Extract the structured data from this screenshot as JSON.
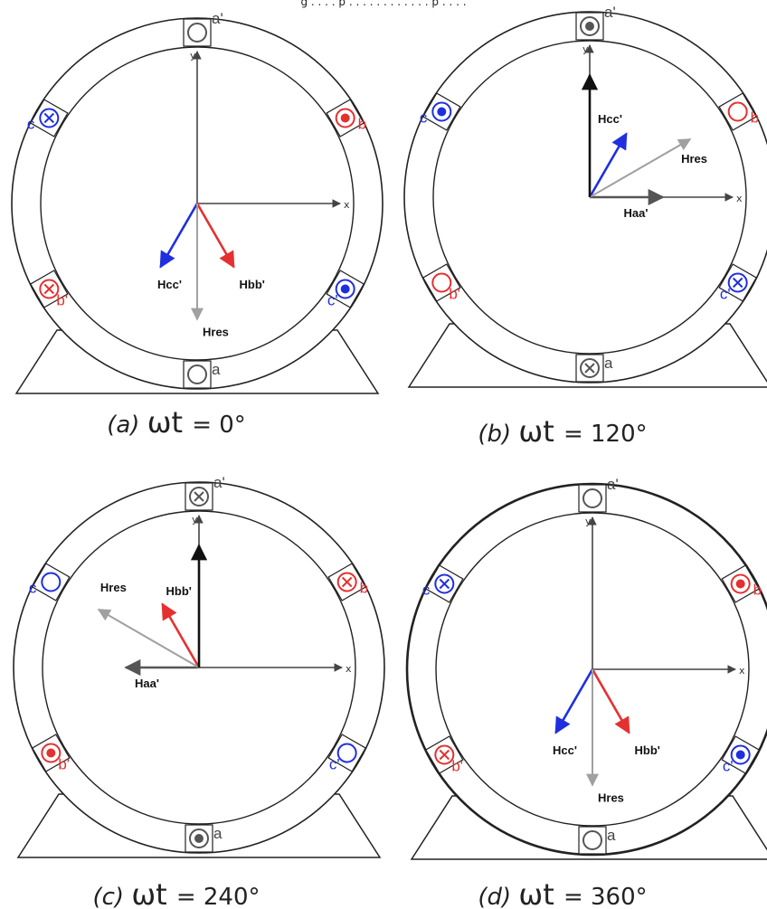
{
  "header_partial": "g . . . . p . . . . . . . . . . . . p . . . .",
  "colors": {
    "a": "#555555",
    "b": "#e53030",
    "c": "#1f2fe0",
    "res": "#a0a0a0",
    "h": "#111111"
  },
  "panels": [
    {
      "id": "a",
      "caption": {
        "letter": "(a)",
        "wt": "ωt",
        "value": "= 0°"
      },
      "axis_labels": {
        "x": "x",
        "y": "y"
      },
      "slots": {
        "a_prime": {
          "label": "a'",
          "symbol": "empty"
        },
        "a": {
          "label": "a",
          "symbol": "empty"
        },
        "b": {
          "label": "b",
          "symbol": "dot"
        },
        "b_prime": {
          "label": "b'",
          "symbol": "cross"
        },
        "c": {
          "label": "c",
          "symbol": "cross"
        },
        "c_prime": {
          "label": "c'",
          "symbol": "dot"
        }
      },
      "vectors": [
        {
          "name": "Hcc'",
          "phase": "c",
          "angle_deg": 240,
          "length": 0.6
        },
        {
          "name": "Hbb'",
          "phase": "b",
          "angle_deg": 300,
          "length": 0.6
        },
        {
          "name": "Hres",
          "phase": "res",
          "angle_deg": 270,
          "length": 0.95
        }
      ]
    },
    {
      "id": "b",
      "caption": {
        "letter": "(b)",
        "wt": "ωt",
        "value": "= 120°"
      },
      "axis_labels": {
        "x": "x",
        "y": "y"
      },
      "slots": {
        "a_prime": {
          "label": "a'",
          "symbol": "dot"
        },
        "a": {
          "label": "a",
          "symbol": "cross"
        },
        "b": {
          "label": "b",
          "symbol": "empty"
        },
        "b_prime": {
          "label": "b'",
          "symbol": "empty"
        },
        "c": {
          "label": "c",
          "symbol": "dot"
        },
        "c_prime": {
          "label": "c'",
          "symbol": "cross"
        }
      },
      "vectors": [
        {
          "name": "Haa'",
          "phase": "a",
          "angle_deg": 0,
          "length": 0.6
        },
        {
          "name": "Hcc'",
          "phase": "c",
          "angle_deg": 60,
          "length": 0.6
        },
        {
          "name": "Hres",
          "phase": "res",
          "angle_deg": 30,
          "length": 0.95
        },
        {
          "name": "",
          "phase": "h",
          "angle_deg": 90,
          "length": 1.0
        }
      ]
    },
    {
      "id": "c",
      "caption": {
        "letter": "(c)",
        "wt": "ωt",
        "value": "= 240°"
      },
      "axis_labels": {
        "x": "x",
        "y": "y"
      },
      "slots": {
        "a_prime": {
          "label": "a'",
          "symbol": "cross"
        },
        "a": {
          "label": "a",
          "symbol": "dot"
        },
        "b": {
          "label": "b",
          "symbol": "cross"
        },
        "b_prime": {
          "label": "b'",
          "symbol": "dot"
        },
        "c": {
          "label": "c",
          "symbol": "empty"
        },
        "c_prime": {
          "label": "c'",
          "symbol": "empty"
        }
      },
      "vectors": [
        {
          "name": "Haa'",
          "phase": "a",
          "angle_deg": 180,
          "length": 0.6
        },
        {
          "name": "Hbb'",
          "phase": "b",
          "angle_deg": 120,
          "length": 0.6
        },
        {
          "name": "Hres",
          "phase": "res",
          "angle_deg": 150,
          "length": 0.95
        },
        {
          "name": "",
          "phase": "h",
          "angle_deg": 90,
          "length": 1.0
        }
      ]
    },
    {
      "id": "d",
      "caption": {
        "letter": "(d)",
        "wt": "ωt",
        "value": "= 360°"
      },
      "axis_labels": {
        "x": "x",
        "y": "y"
      },
      "slots": {
        "a_prime": {
          "label": "a'",
          "symbol": "empty"
        },
        "a": {
          "label": "a",
          "symbol": "empty"
        },
        "b": {
          "label": "b",
          "symbol": "dot"
        },
        "b_prime": {
          "label": "b'",
          "symbol": "cross"
        },
        "c": {
          "label": "c",
          "symbol": "cross"
        },
        "c_prime": {
          "label": "c'",
          "symbol": "dot"
        }
      },
      "vectors": [
        {
          "name": "Hcc'",
          "phase": "c",
          "angle_deg": 240,
          "length": 0.6
        },
        {
          "name": "Hbb'",
          "phase": "b",
          "angle_deg": 300,
          "length": 0.6
        },
        {
          "name": "Hres",
          "phase": "res",
          "angle_deg": 270,
          "length": 0.95
        }
      ]
    }
  ]
}
